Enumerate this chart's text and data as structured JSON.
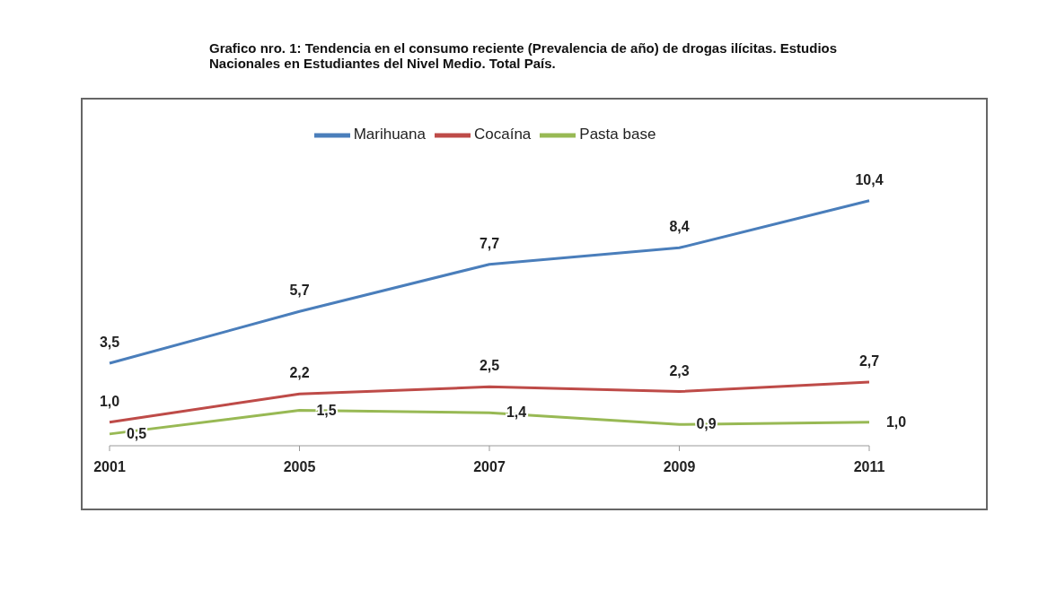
{
  "chart_data": {
    "type": "line",
    "title": "Grafico nro. 1: Tendencia en el consumo reciente (Prevalencia de año) de drogas ilícitas. Estudios Nacionales en Estudiantes del Nivel Medio. Total País.",
    "categories": [
      "2001",
      "2005",
      "2007",
      "2009",
      "2011"
    ],
    "series": [
      {
        "name": "Marihuana",
        "color": "#4a7ebb",
        "values": [
          3.5,
          5.7,
          7.7,
          8.4,
          10.4
        ],
        "value_labels": [
          "3,5",
          "5,7",
          "7,7",
          "8,4",
          "10,4"
        ]
      },
      {
        "name": "Cocaína",
        "color": "#be4b48",
        "values": [
          1.0,
          2.2,
          2.5,
          2.3,
          2.7
        ],
        "value_labels": [
          "1,0",
          "2,2",
          "2,5",
          "2,3",
          "2,7"
        ]
      },
      {
        "name": "Pasta base",
        "color": "#98b954",
        "values": [
          0.5,
          1.5,
          1.4,
          0.9,
          1.0
        ],
        "value_labels": [
          "0,5",
          "1,5",
          "1,4",
          "0,9",
          "1,0"
        ]
      }
    ],
    "legend": "top",
    "grid": false,
    "marker": "none",
    "line_style": "solid"
  }
}
